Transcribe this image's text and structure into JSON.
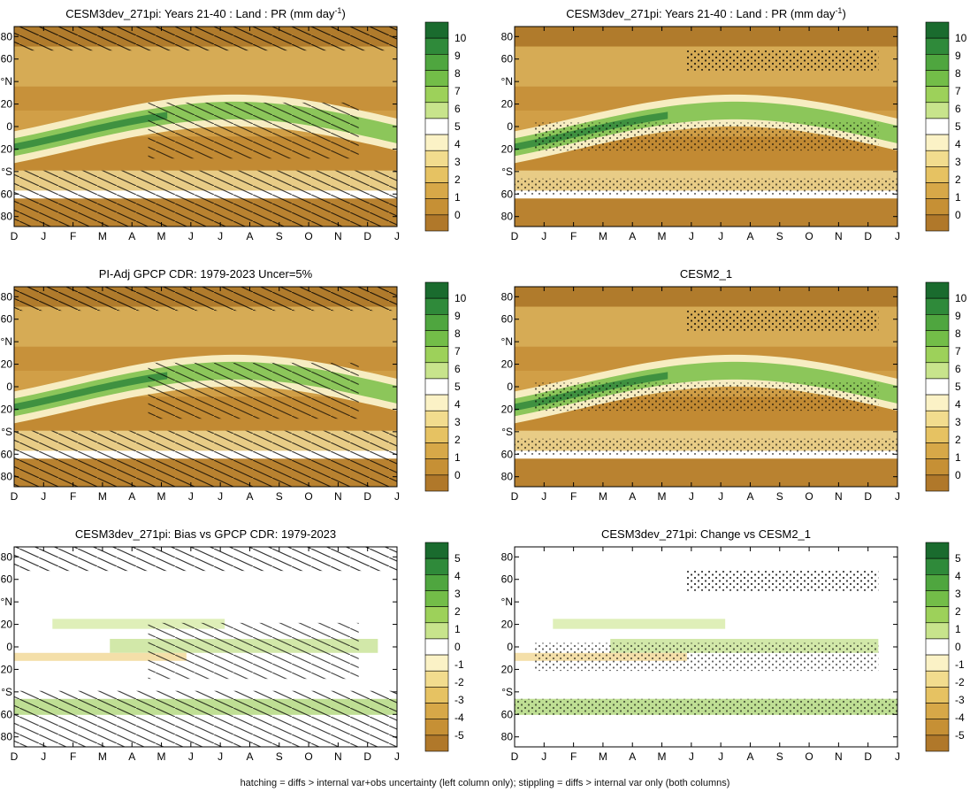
{
  "footer": "hatching = diffs > internal var+obs uncertainty (left column only); stippling = diffs > internal var only (both columns)",
  "chart_data": [
    {
      "type": "heatmap",
      "title": "CESM3dev_271pi: Years 21-40 : Land : PR (mm day",
      "title_sup": "-1",
      "title_end": ")",
      "x_tick_labels": [
        "D",
        "J",
        "F",
        "M",
        "A",
        "M",
        "J",
        "J",
        "A",
        "S",
        "O",
        "N",
        "D",
        "J"
      ],
      "y_tick_labels": [
        "80",
        "60",
        "°N",
        "20",
        "0",
        "20",
        "°S",
        "60",
        "80"
      ],
      "colorbar": {
        "labels": [
          "10",
          "9",
          "8",
          "7",
          "6",
          "5",
          "4",
          "3",
          "2",
          "1",
          "0"
        ],
        "colors": [
          "#1a6b2e",
          "#2f8a3a",
          "#4fa63f",
          "#73bd48",
          "#9dd15a",
          "#c8e48c",
          "#ffffff",
          "#fbf2c6",
          "#f2dc8e",
          "#e6c262",
          "#d7a848",
          "#c69035",
          "#b0782a"
        ]
      },
      "overlay": "hatch-stipple",
      "mode": "absolute",
      "lat_gap_weight": 1
    },
    {
      "type": "heatmap",
      "title": "CESM3dev_271pi: Years 21-40 : Land : PR (mm day",
      "title_sup": "-1",
      "title_end": ")",
      "x_tick_labels": [
        "D",
        "J",
        "F",
        "M",
        "A",
        "M",
        "J",
        "J",
        "A",
        "S",
        "O",
        "N",
        "D",
        "J"
      ],
      "y_tick_labels": [
        "80",
        "60",
        "°N",
        "20",
        "0",
        "20",
        "°S",
        "60",
        "80"
      ],
      "colorbar": {
        "labels": [
          "10",
          "9",
          "8",
          "7",
          "6",
          "5",
          "4",
          "3",
          "2",
          "1",
          "0"
        ],
        "colors": [
          "#1a6b2e",
          "#2f8a3a",
          "#4fa63f",
          "#73bd48",
          "#9dd15a",
          "#c8e48c",
          "#ffffff",
          "#fbf2c6",
          "#f2dc8e",
          "#e6c262",
          "#d7a848",
          "#c69035",
          "#b0782a"
        ]
      },
      "overlay": "stipple",
      "mode": "absolute",
      "lat_gap_weight": 1
    },
    {
      "type": "heatmap",
      "title": "PI-Adj GPCP CDR: 1979-2023 Uncer=5%",
      "x_tick_labels": [
        "D",
        "J",
        "F",
        "M",
        "A",
        "M",
        "J",
        "J",
        "A",
        "S",
        "O",
        "N",
        "D",
        "J"
      ],
      "y_tick_labels": [
        "80",
        "60",
        "°N",
        "20",
        "0",
        "20",
        "°S",
        "60",
        "80"
      ],
      "colorbar": {
        "labels": [
          "10",
          "9",
          "8",
          "7",
          "6",
          "5",
          "4",
          "3",
          "2",
          "1",
          "0"
        ],
        "colors": [
          "#1a6b2e",
          "#2f8a3a",
          "#4fa63f",
          "#73bd48",
          "#9dd15a",
          "#c8e48c",
          "#ffffff",
          "#fbf2c6",
          "#f2dc8e",
          "#e6c262",
          "#d7a848",
          "#c69035",
          "#b0782a"
        ]
      },
      "overlay": "hatch-stipple",
      "mode": "absolute",
      "lat_gap_weight": 1
    },
    {
      "type": "heatmap",
      "title": "CESM2_1",
      "x_tick_labels": [
        "D",
        "J",
        "F",
        "M",
        "A",
        "M",
        "J",
        "J",
        "A",
        "S",
        "O",
        "N",
        "D",
        "J"
      ],
      "y_tick_labels": [
        "80",
        "60",
        "°N",
        "20",
        "0",
        "20",
        "°S",
        "60",
        "80"
      ],
      "colorbar": {
        "labels": [
          "10",
          "9",
          "8",
          "7",
          "6",
          "5",
          "4",
          "3",
          "2",
          "1",
          "0"
        ],
        "colors": [
          "#1a6b2e",
          "#2f8a3a",
          "#4fa63f",
          "#73bd48",
          "#9dd15a",
          "#c8e48c",
          "#ffffff",
          "#fbf2c6",
          "#f2dc8e",
          "#e6c262",
          "#d7a848",
          "#c69035",
          "#b0782a"
        ]
      },
      "overlay": "stipple",
      "mode": "absolute",
      "lat_gap_weight": 1
    },
    {
      "type": "heatmap",
      "title": "CESM3dev_271pi: Bias vs GPCP CDR: 1979-2023",
      "x_tick_labels": [
        "D",
        "J",
        "F",
        "M",
        "A",
        "M",
        "J",
        "J",
        "A",
        "S",
        "O",
        "N",
        "D",
        "J"
      ],
      "y_tick_labels": [
        "80",
        "60",
        "°N",
        "20",
        "0",
        "20",
        "°S",
        "60",
        "80"
      ],
      "colorbar": {
        "labels": [
          "5",
          "4",
          "3",
          "2",
          "1",
          "0",
          "-1",
          "-2",
          "-3",
          "-4",
          "-5"
        ],
        "colors": [
          "#1a6b2e",
          "#2f8a3a",
          "#4fa63f",
          "#73bd48",
          "#9dd15a",
          "#c8e48c",
          "#ffffff",
          "#fbf2c6",
          "#f2dc8e",
          "#e6c262",
          "#d7a848",
          "#c69035",
          "#b0782a"
        ]
      },
      "overlay": "hatch-stipple",
      "mode": "diff",
      "lat_gap_weight": 0
    },
    {
      "type": "heatmap",
      "title": "CESM3dev_271pi: Change vs CESM2_1",
      "x_tick_labels": [
        "D",
        "J",
        "F",
        "M",
        "A",
        "M",
        "J",
        "J",
        "A",
        "S",
        "O",
        "N",
        "D",
        "J"
      ],
      "y_tick_labels": [
        "80",
        "60",
        "°N",
        "20",
        "0",
        "20",
        "°S",
        "60",
        "80"
      ],
      "colorbar": {
        "labels": [
          "5",
          "4",
          "3",
          "2",
          "1",
          "0",
          "-1",
          "-2",
          "-3",
          "-4",
          "-5"
        ],
        "colors": [
          "#1a6b2e",
          "#2f8a3a",
          "#4fa63f",
          "#73bd48",
          "#9dd15a",
          "#c8e48c",
          "#ffffff",
          "#fbf2c6",
          "#f2dc8e",
          "#e6c262",
          "#d7a848",
          "#c69035",
          "#b0782a"
        ]
      },
      "overlay": "stipple",
      "mode": "diff",
      "lat_gap_weight": 0
    }
  ]
}
